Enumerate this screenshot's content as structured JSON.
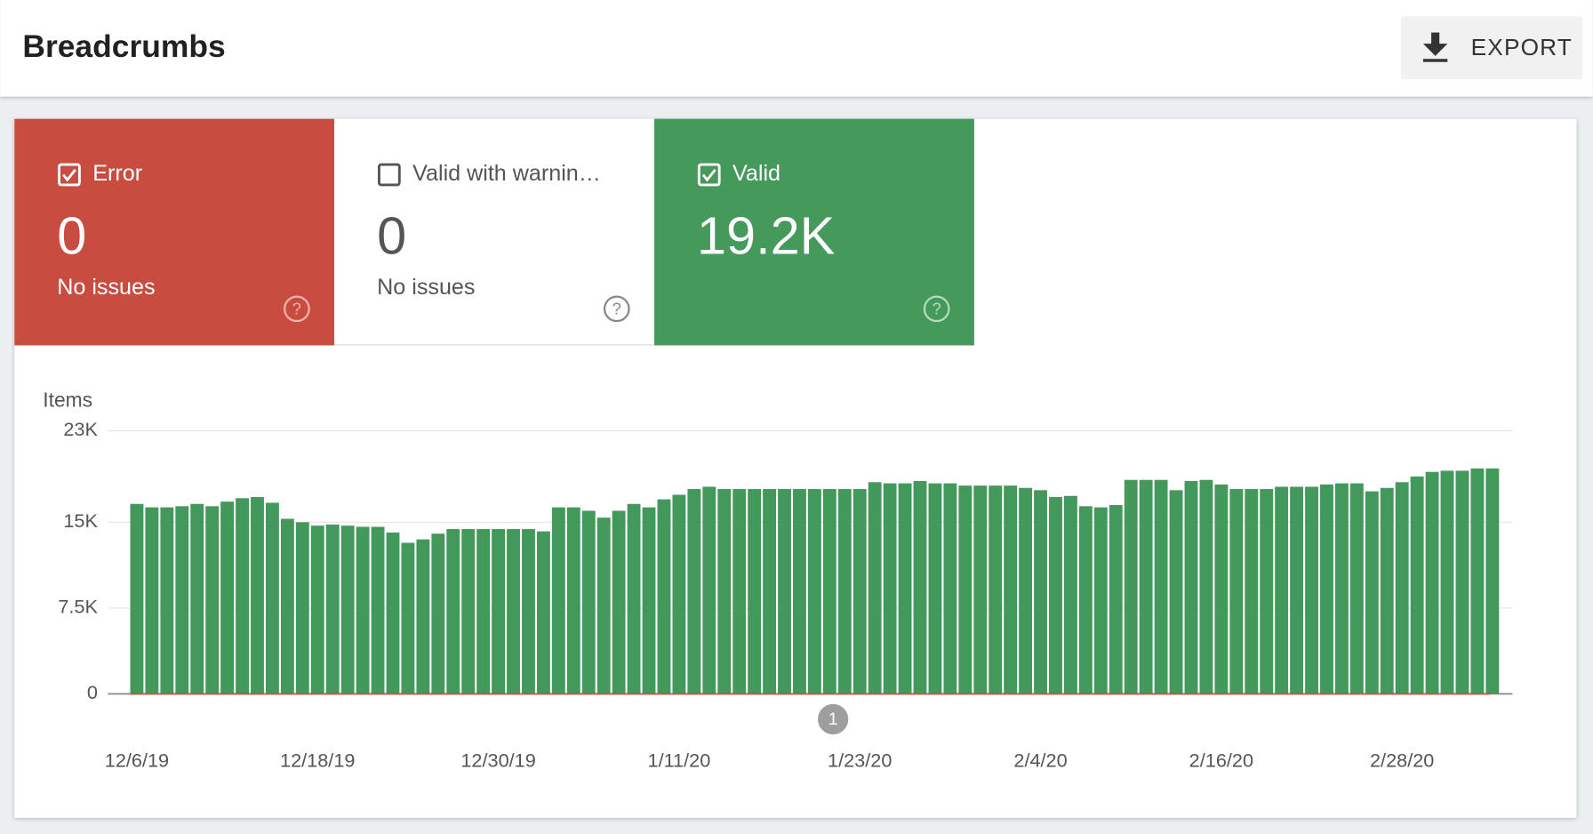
{
  "header": {
    "title": "Breadcrumbs",
    "export": "EXPORT"
  },
  "cards": [
    {
      "label": "Error",
      "value": 0,
      "note": "No issues"
    },
    {
      "label": "Valid with warnin…",
      "value": 0,
      "note": "No issues"
    },
    {
      "value": "19.2K"
    }
  ],
  "chart_data": {
    "type": "bar",
    "y_label": "Items",
    "categories": [
      "12/6/19",
      null,
      null,
      null,
      null,
      null,
      null,
      null,
      null,
      null,
      null,
      null,
      "12/18/19",
      null,
      null,
      null,
      null,
      null,
      null,
      null,
      null,
      null,
      null,
      null,
      "12/30/19",
      null,
      null,
      null,
      null,
      null,
      null,
      null,
      null,
      null,
      null,
      null,
      "1/11/20",
      null,
      null,
      null,
      null,
      null,
      null,
      null,
      null,
      null,
      null,
      null,
      "1/23/20",
      null,
      null,
      null,
      null,
      null,
      null,
      null,
      null,
      null,
      null,
      null,
      "2/4/20",
      null,
      null,
      null,
      null,
      null,
      null,
      null,
      null,
      null,
      null,
      null,
      "2/16/20",
      null,
      null,
      null,
      null,
      null,
      null,
      null,
      null,
      null,
      null,
      null,
      "2/28/20",
      null,
      null,
      null,
      null,
      null,
      null
    ],
    "series": [
      {
        "name": "Valid",
        "color": "#43985b",
        "values": [
          16600,
          16300,
          16300,
          16400,
          16600,
          16400,
          16800,
          17100,
          17200,
          16700,
          15300,
          15000,
          14700,
          14800,
          14700,
          14600,
          14600,
          14100,
          13200,
          13500,
          14000,
          14400,
          14400,
          14400,
          14400,
          14400,
          14400,
          14200,
          16300,
          16300,
          16000,
          15400,
          16000,
          16600,
          16300,
          17000,
          17400,
          17900,
          18100,
          17900,
          17900,
          17900,
          17900,
          17900,
          17900,
          17900,
          17900,
          17900,
          17900,
          18500,
          18400,
          18400,
          18600,
          18400,
          18400,
          18200,
          18200,
          18200,
          18200,
          18000,
          17800,
          17200,
          17300,
          16400,
          16300,
          16500,
          18700,
          18700,
          18700,
          17800,
          18600,
          18700,
          18300,
          17900,
          17900,
          17900,
          18100,
          18100,
          18100,
          18300,
          18400,
          18400,
          17700,
          18000,
          18500,
          19000,
          19400,
          19500,
          19500,
          19700,
          19700
        ]
      }
    ],
    "ylim": [
      0,
      23000
    ],
    "yticks": [
      0,
      {
        "value": 7500,
        "label": "7.5K"
      },
      {
        "value": 15000,
        "label": "15K"
      },
      {
        "value": 23000,
        "label": "23K"
      }
    ],
    "grid": true,
    "annotation": "1"
  }
}
